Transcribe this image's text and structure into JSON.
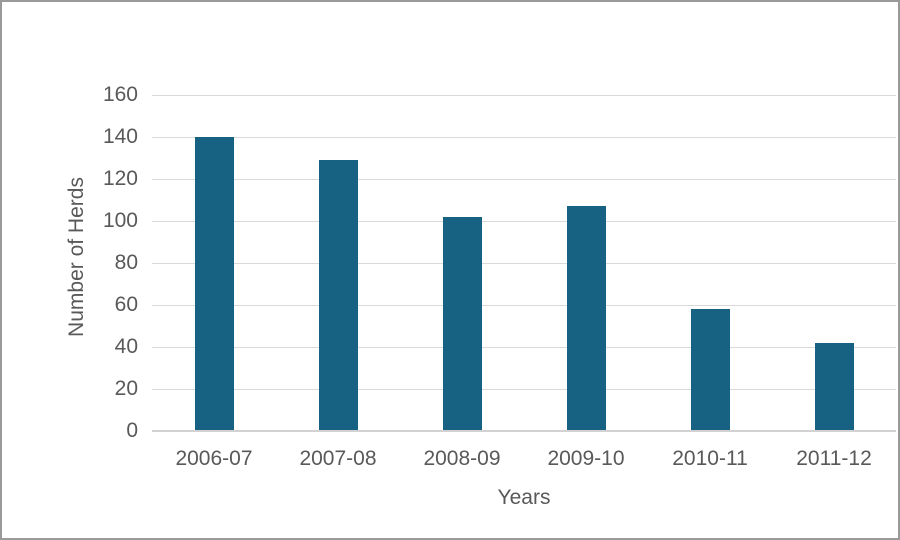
{
  "chart_data": {
    "type": "bar",
    "title": "",
    "categories": [
      "2006-07",
      "2007-08",
      "2008-09",
      "2009-10",
      "2010-11",
      "2011-12"
    ],
    "values": [
      140,
      129,
      102,
      107,
      58,
      42
    ],
    "xlabel": "Years",
    "ylabel": "Number of Herds",
    "ylim": [
      0,
      160
    ],
    "ytick_step": 20,
    "yticks": [
      0,
      20,
      40,
      60,
      80,
      100,
      120,
      140,
      160
    ],
    "grid": true,
    "legend_position": "none",
    "bar_color": "#176182",
    "gridline_color": "#d9d9d9",
    "axis_line_color": "#d2d2d2",
    "text_color": "#595959",
    "frame_border_color": "#9a9a9a",
    "background_color": "#ffffff"
  }
}
